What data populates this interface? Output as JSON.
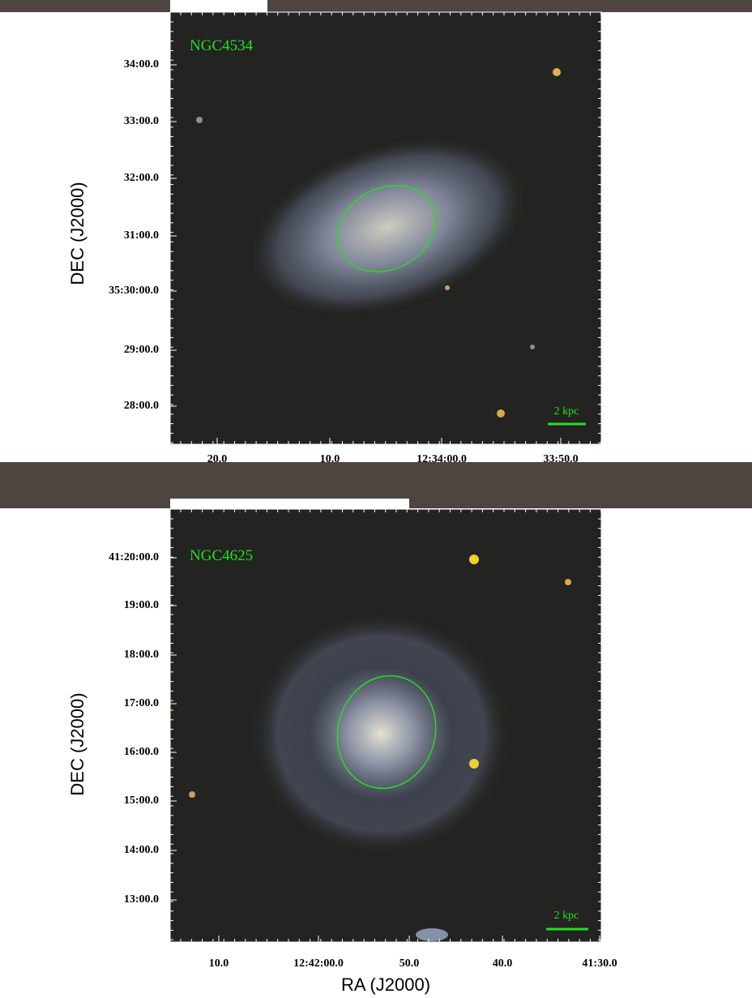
{
  "panels": [
    {
      "name": "NGC4534",
      "dec_ticks": [
        "34:00.0",
        "33:00.0",
        "32:00.0",
        "31:00.0",
        "35:30:00.0",
        "29:00.0",
        "28:00.0"
      ],
      "ra_ticks": [
        "20.0",
        "10.0",
        "12:34:00.0",
        "33:50.0"
      ],
      "scale_bar": "2 kpc",
      "y_label": "DEC (J2000)"
    },
    {
      "name": "NGC4625",
      "dec_ticks": [
        "41:20:00.0",
        "19:00.0",
        "18:00.0",
        "17:00.0",
        "16:00.0",
        "15:00.0",
        "14:00.0",
        "13:00.0"
      ],
      "ra_ticks": [
        "10.0",
        "12:42:00.0",
        "50.0",
        "40.0",
        "41:30.0"
      ],
      "scale_bar": "2 kpc",
      "y_label": "DEC (J2000)"
    }
  ],
  "x_label": "RA (J2000)"
}
